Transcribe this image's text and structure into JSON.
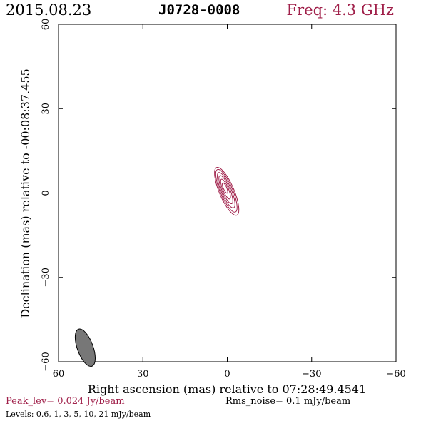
{
  "header": {
    "date": "2015.08.23",
    "source": "J0728-0008",
    "freq": "Freq: 4.3 GHz"
  },
  "chart_data": {
    "type": "contour",
    "xlabel": "Right ascension (mas) relative to 07:28:49.4541",
    "ylabel": "Declination (mas) relative to -00:08:37.455",
    "xlim": [
      60,
      -60
    ],
    "ylim": [
      -60,
      60
    ],
    "xticks": [
      60,
      30,
      0,
      -30,
      -60
    ],
    "yticks": [
      -60,
      -30,
      0,
      30,
      60
    ],
    "contour_color": "#a0204a",
    "contours": [
      {
        "level_mjy": 0.6,
        "center": [
          0.2,
          0.6
        ],
        "semi_major": 9.2,
        "semi_minor": 2.6,
        "pa_deg": 23
      },
      {
        "level_mjy": 1,
        "center": [
          0.3,
          0.8
        ],
        "semi_major": 8.2,
        "semi_minor": 2.2,
        "pa_deg": 23
      },
      {
        "level_mjy": 3,
        "center": [
          0.4,
          1.0
        ],
        "semi_major": 6.8,
        "semi_minor": 1.8,
        "pa_deg": 23
      },
      {
        "level_mjy": 5,
        "center": [
          0.5,
          1.2
        ],
        "semi_major": 5.4,
        "semi_minor": 1.4,
        "pa_deg": 23
      },
      {
        "level_mjy": 10,
        "center": [
          0.6,
          1.4
        ],
        "semi_major": 3.8,
        "semi_minor": 1.0,
        "pa_deg": 23
      },
      {
        "level_mjy": 21,
        "center": [
          0.8,
          1.8
        ],
        "semi_major": 2.0,
        "semi_minor": 0.6,
        "pa_deg": 23
      }
    ],
    "beam": {
      "center": [
        50.5,
        -55.0
      ],
      "major": 7.0,
      "minor": 2.8,
      "pa_deg": 20,
      "color": "#777777"
    }
  },
  "footer": {
    "peak": "Peak_lev=  0.024 Jy/beam",
    "rms": "Rms_noise=  0.1 mJy/beam",
    "levels": "Levels: 0.6,   1,   3,   5,   10,   21 mJy/beam"
  }
}
